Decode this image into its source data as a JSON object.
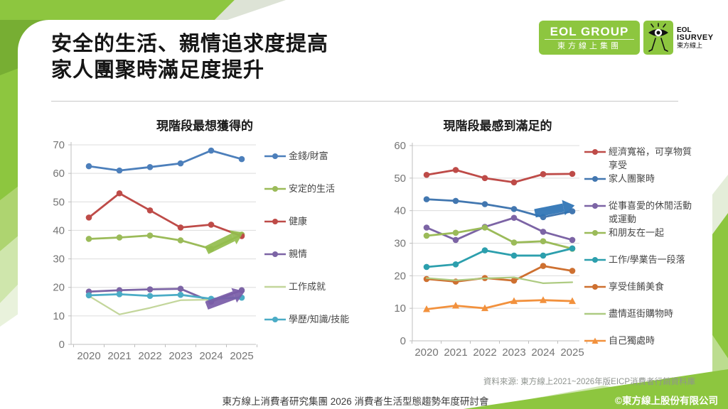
{
  "slide": {
    "title_line1": "安全的生活、親情追求度提高",
    "title_line2": "家人團聚時滿足度提升",
    "source": "資料來源: 東方線上2021~2026年版EICP消費者行銷資料庫",
    "footer_left": "東方線上消費者研究集團 2026 消費者生活型態趨勢年度研討會",
    "footer_right": "©東方線上股份有限公司"
  },
  "logo": {
    "brand_green": "#8DC63F",
    "group_en": "EOL GROUP",
    "group_cn": "東方線上集團",
    "isurvey_line1": "EOL",
    "isurvey_line2": "ISURVEY",
    "isurvey_line3": "東方線上",
    "eye_icon": "eye-creature-icon"
  },
  "chart_data": [
    {
      "type": "line",
      "title": "現階段最想獲得的",
      "categories": [
        "2020",
        "2021",
        "2022",
        "2023",
        "2024",
        "2025"
      ],
      "ylim": [
        0,
        70
      ],
      "ytick": 10,
      "grid": true,
      "legend_position": "right",
      "series": [
        {
          "name": "金錢/財富",
          "color": "#4C7FBB",
          "marker": "circle",
          "values": [
            62.5,
            61,
            62.2,
            63.5,
            68,
            65
          ]
        },
        {
          "name": "安定的生活",
          "color": "#9BBB59",
          "marker": "circle",
          "values": [
            37,
            37.5,
            38.2,
            36.5,
            33.5,
            38.5
          ]
        },
        {
          "name": "健康",
          "color": "#BE4B48",
          "marker": "circle",
          "values": [
            44.5,
            53,
            47,
            41,
            42,
            38
          ]
        },
        {
          "name": "親情",
          "color": "#7C64A5",
          "marker": "circle",
          "values": [
            18.5,
            19,
            19.3,
            19.5,
            15,
            19
          ]
        },
        {
          "name": "工作成就",
          "color": "#C3D69B",
          "marker": "none",
          "values": [
            17,
            10.5,
            12.8,
            15.5,
            15.7,
            16.6
          ]
        },
        {
          "name": "學歷/知識/技能",
          "color": "#4BACC6",
          "marker": "circle",
          "values": [
            17.2,
            17.6,
            17,
            17.4,
            16,
            16.4
          ]
        }
      ],
      "annotations": [
        {
          "shape": "block-arrow",
          "color": "#94BE4E",
          "from": [
            3.85,
            33.0
          ],
          "to": [
            5.05,
            39.3
          ]
        },
        {
          "shape": "block-arrow",
          "color": "#7A5DA8",
          "from": [
            3.85,
            13.6
          ],
          "to": [
            5.1,
            18.6
          ]
        }
      ]
    },
    {
      "type": "line",
      "title": "現階段最感到滿足的",
      "categories": [
        "2020",
        "2021",
        "2022",
        "2023",
        "2024",
        "2025"
      ],
      "ylim": [
        0,
        60
      ],
      "ytick": 10,
      "grid": true,
      "legend_position": "right",
      "series": [
        {
          "name": "經濟寬裕，可享物質享受",
          "color": "#BE4B48",
          "marker": "circle",
          "values": [
            51,
            52.5,
            50,
            48.7,
            51.2,
            51.3
          ]
        },
        {
          "name": "家人團聚時",
          "color": "#4277B0",
          "marker": "circle",
          "values": [
            43.5,
            43,
            42,
            40.5,
            38,
            39.8
          ]
        },
        {
          "name": "從事喜愛的休閒活動或運動",
          "color": "#7C64A5",
          "marker": "circle",
          "values": [
            34.8,
            31,
            35,
            37.8,
            33.5,
            31
          ]
        },
        {
          "name": "和朋友在一起",
          "color": "#9BBB59",
          "marker": "circle",
          "values": [
            32.3,
            33.2,
            34.8,
            30.2,
            30.6,
            28.3
          ]
        },
        {
          "name": "工作/學業告一段落",
          "color": "#2C9FAD",
          "marker": "circle",
          "values": [
            22.7,
            23.5,
            27.8,
            26.2,
            26.2,
            28.4
          ]
        },
        {
          "name": "享受佳餚美食",
          "color": "#CE7030",
          "marker": "circle",
          "values": [
            19,
            18.2,
            19.3,
            18.5,
            23,
            21.5
          ]
        },
        {
          "name": "盡情逛街購物時",
          "color": "#AECB82",
          "marker": "none",
          "values": [
            19.3,
            18.6,
            19.2,
            19.5,
            17.7,
            18
          ]
        },
        {
          "name": "自己獨處時",
          "color": "#F2913D",
          "marker": "triangle",
          "values": [
            9.7,
            10.8,
            10,
            12.2,
            12.5,
            12.2
          ]
        }
      ],
      "annotations": [
        {
          "shape": "block-arrow",
          "color": "#2E74B5",
          "from": [
            3.72,
            39.2
          ],
          "to": [
            5.08,
            41.6
          ]
        }
      ]
    }
  ]
}
